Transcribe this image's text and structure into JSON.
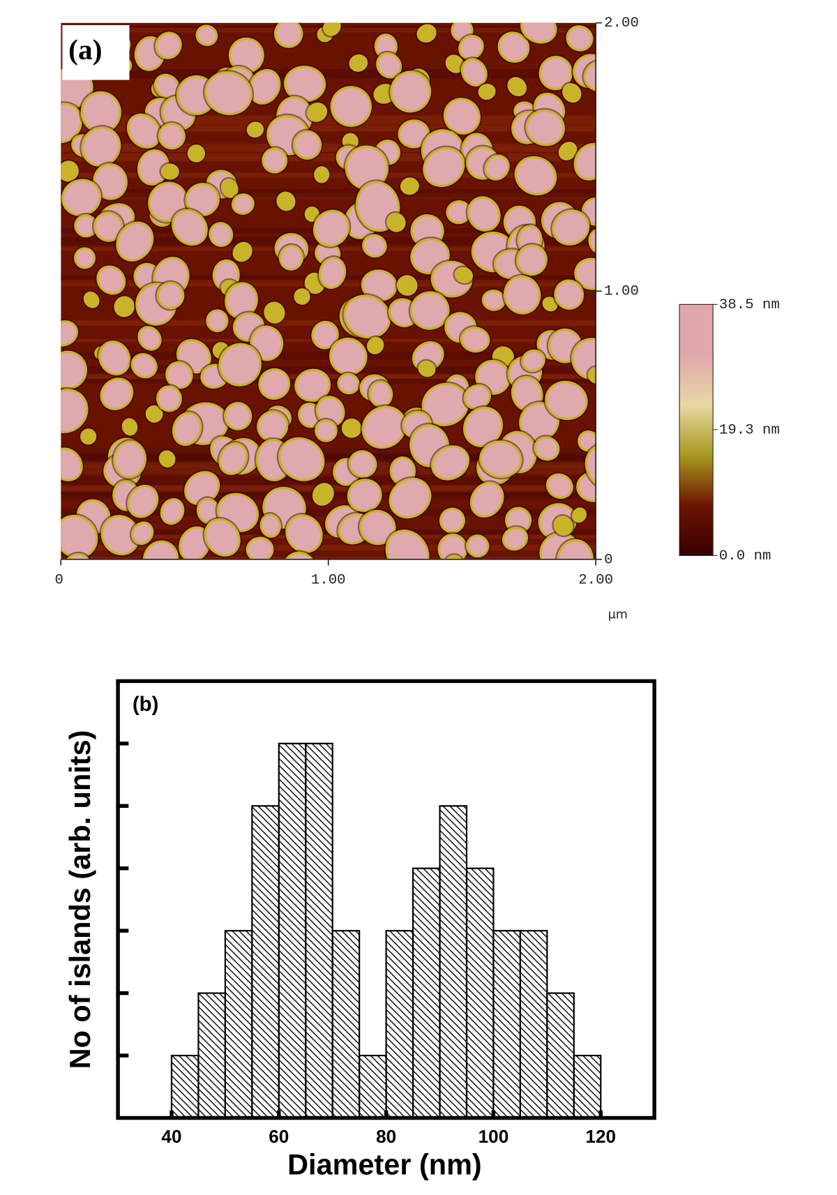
{
  "chart_data": [
    {
      "type": "image",
      "label": "(a)",
      "xlim": [
        0,
        2
      ],
      "ylim": [
        0,
        2
      ],
      "xticks": [
        0,
        {
          "value": 1,
          "label": "1.00"
        },
        {
          "value": 2,
          "label": "2.00"
        }
      ],
      "yticks": [
        0,
        {
          "value": 1,
          "label": "1.00"
        },
        {
          "value": 2,
          "label": "2.00"
        }
      ],
      "unit": "μm",
      "colorbar": {
        "zlim": [
          0,
          38.5
        ],
        "ticks": [
          {
            "value": 0,
            "label": "0.0 nm"
          },
          {
            "value": 19.3,
            "label": "19.3 nm"
          },
          {
            "value": 38.5,
            "label": "38.5 nm"
          }
        ],
        "colors": [
          "#360000",
          "#6e1400",
          "#a89a20",
          "#e8d8a4",
          "#e0a8ac",
          "#e0a8ac"
        ]
      }
    },
    {
      "type": "histogram",
      "label": "(b)",
      "xlabel": "Diameter (nm)",
      "ylabel": "No of islands (arb. units)",
      "bins": [
        40,
        45,
        50,
        55,
        60,
        65,
        70,
        75,
        80,
        85,
        90,
        95,
        100,
        105,
        110,
        115,
        120
      ],
      "values": [
        1,
        2,
        3,
        5,
        6,
        6,
        3,
        1,
        3,
        4,
        5,
        4,
        3,
        3,
        2,
        1
      ],
      "xlim": [
        30,
        130
      ],
      "ylim": [
        0,
        7
      ],
      "xticks": [
        40,
        60,
        80,
        100,
        120
      ],
      "yticks": [
        1,
        2,
        3,
        4,
        5,
        6
      ],
      "ytick_labels": false,
      "hatch": "diagonal",
      "color": "#000000"
    }
  ]
}
